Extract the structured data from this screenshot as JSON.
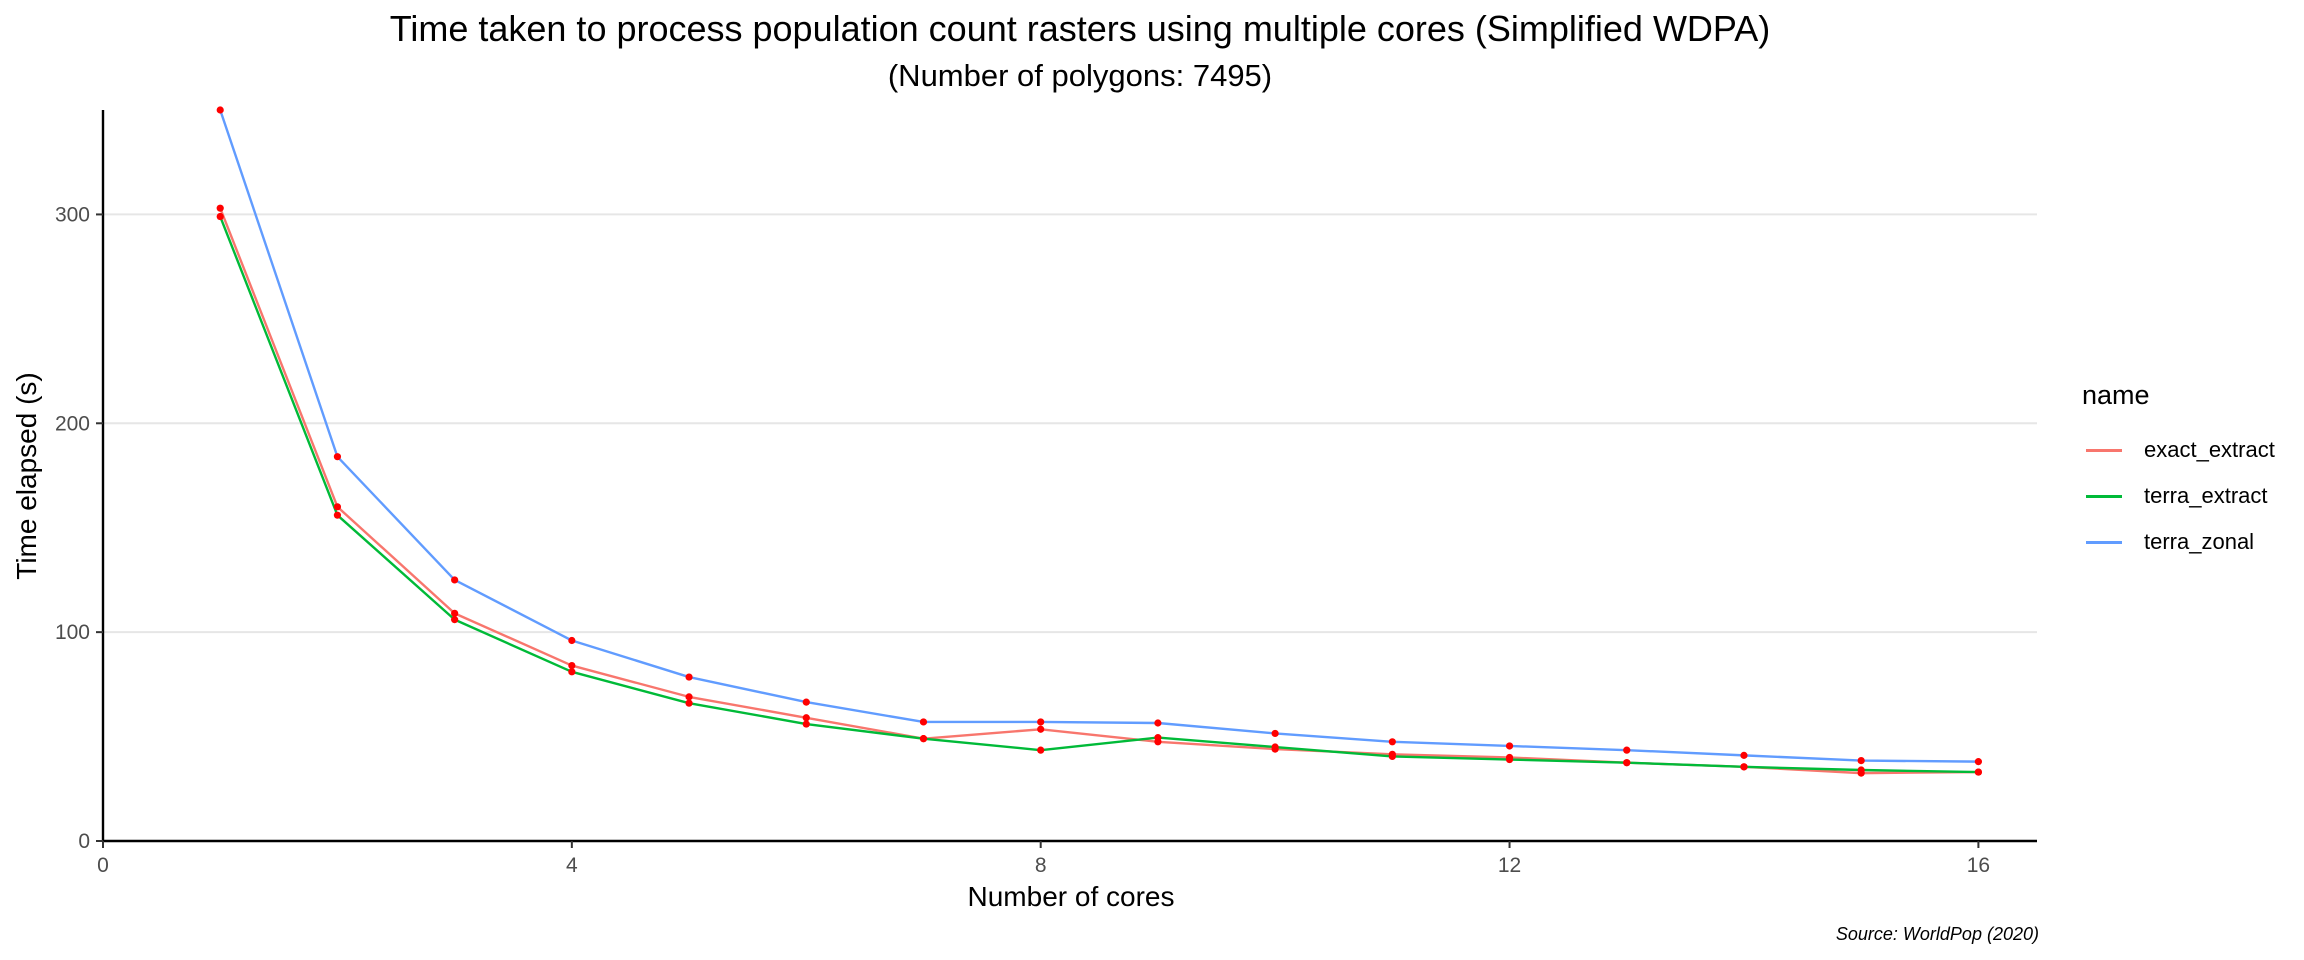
{
  "chart_data": {
    "type": "line",
    "title": "Time taken to process population count rasters using multiple cores (Simplified WDPA)",
    "subtitle": "(Number of polygons: 7495)",
    "xlabel": "Number of cores",
    "ylabel": "Time elapsed (s)",
    "caption": "Source: WorldPop (2020)",
    "xlim": [
      0,
      16.5
    ],
    "ylim": [
      0,
      350
    ],
    "x_ticks": [
      0,
      4,
      8,
      12,
      16
    ],
    "y_ticks": [
      0,
      100,
      200,
      300
    ],
    "grid": "horizontal major",
    "point_color": "#ff0000",
    "legend": {
      "title": "name",
      "position": "right"
    },
    "x": [
      1,
      2,
      3,
      4,
      5,
      6,
      7,
      8,
      9,
      10,
      11,
      12,
      13,
      14,
      15,
      16
    ],
    "series": [
      {
        "name": "exact_extract",
        "color": "#f8766d",
        "values": [
          303,
          160,
          109,
          84,
          69,
          59,
          49,
          53.5,
          47.5,
          44,
          41.5,
          40,
          37.5,
          35.5,
          32.5,
          33
        ]
      },
      {
        "name": "terra_extract",
        "color": "#00ba38",
        "values": [
          299,
          156,
          106,
          81,
          66,
          56,
          49,
          43.5,
          49.5,
          45,
          40.5,
          39,
          37.5,
          35.5,
          34,
          33
        ]
      },
      {
        "name": "terra_zonal",
        "color": "#619cff",
        "values": [
          350,
          184,
          125,
          96,
          78.5,
          66.5,
          57,
          57,
          56.5,
          51.5,
          47.5,
          45.5,
          43.5,
          41,
          38.5,
          38
        ]
      }
    ]
  }
}
